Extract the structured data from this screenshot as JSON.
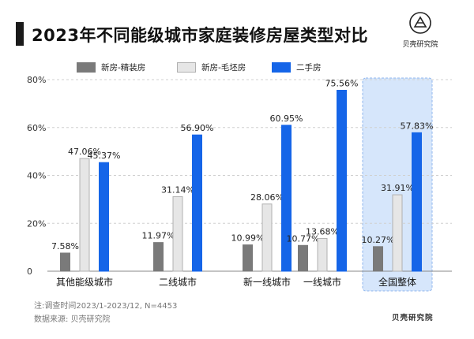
{
  "title": "2023年不同能级城市家庭装修房屋类型对比",
  "brand_name": "贝壳研究院",
  "legend": [
    {
      "label": "新房-精装房",
      "color": "#7a7a7a",
      "border": "#7a7a7a"
    },
    {
      "label": "新房-毛坯房",
      "color": "#e6e6e6",
      "border": "#b0b0b0"
    },
    {
      "label": "二手房",
      "color": "#1565e8",
      "border": "#1565e8"
    }
  ],
  "footer": {
    "note": "注:调查时间2023/1-2023/12, N=4453",
    "source": "数据来源: 贝壳研究院"
  },
  "chart_data": {
    "type": "bar",
    "categories": [
      "其他能级城市",
      "二线城市",
      "新一线城市",
      "一线城市",
      "全国整体"
    ],
    "series": [
      {
        "name": "新房-精装房",
        "values": [
          7.58,
          11.97,
          10.99,
          10.77,
          10.27
        ],
        "labels": [
          "7.58%",
          "11.97%",
          "10.99%",
          "10.77%",
          "10.27%"
        ],
        "color": "#7a7a7a",
        "border": "#7a7a7a"
      },
      {
        "name": "新房-毛坯房",
        "values": [
          47.06,
          31.14,
          28.06,
          13.68,
          31.91
        ],
        "labels": [
          "47.06%",
          "31.14%",
          "28.06%",
          "13.68%",
          "31.91%"
        ],
        "color": "#e6e6e6",
        "border": "#b0b0b0"
      },
      {
        "name": "二手房",
        "values": [
          45.37,
          56.9,
          60.95,
          75.56,
          57.83
        ],
        "labels": [
          "45.37%",
          "56.90%",
          "60.95%",
          "75.56%",
          "57.83%"
        ],
        "color": "#1565e8",
        "border": "#1565e8"
      }
    ],
    "ylim": [
      0,
      80
    ],
    "yticks": [
      0,
      20,
      40,
      60,
      80
    ],
    "ytick_labels": [
      "0",
      "20%",
      "40%",
      "60%",
      "80%"
    ],
    "grid": true,
    "highlight_category": "全国整体",
    "highlight_color": "#d6e6fb"
  }
}
